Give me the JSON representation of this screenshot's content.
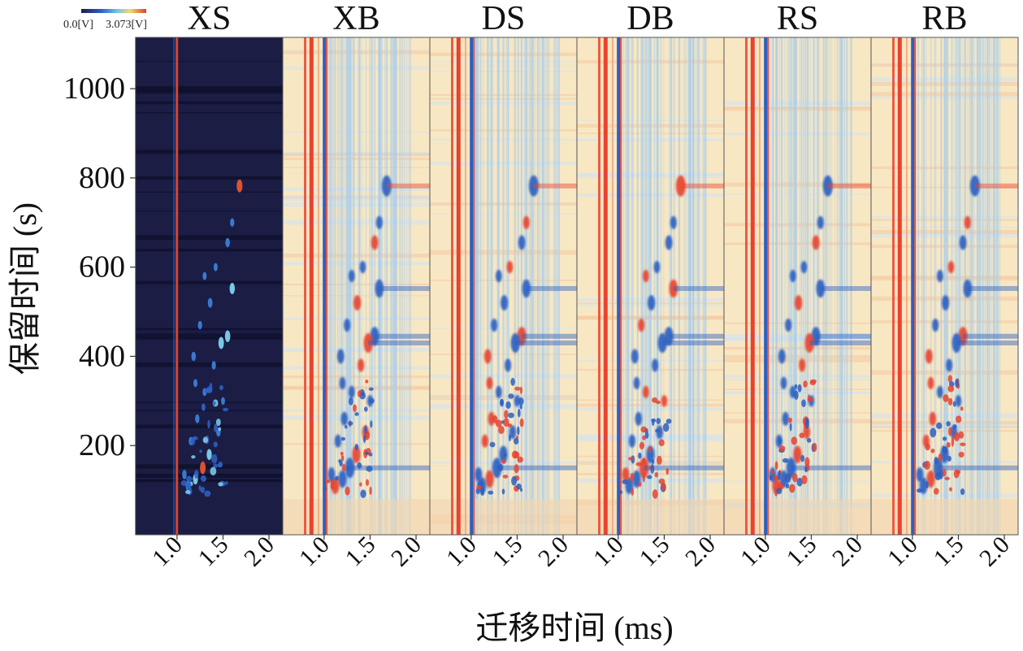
{
  "chart_data": {
    "type": "heatmap",
    "title": "",
    "ylabel": "保留时间 (s)",
    "xlabel": "迁移时间 (ms)",
    "y_ticks": [
      {
        "value": 200,
        "label": "200"
      },
      {
        "value": 400,
        "label": "400"
      },
      {
        "value": 600,
        "label": "600"
      },
      {
        "value": 800,
        "label": "800"
      },
      {
        "value": 1000,
        "label": "1000"
      }
    ],
    "x_ticks": [
      {
        "value": 1.0,
        "label": "1.0"
      },
      {
        "value": 1.5,
        "label": "1.5"
      },
      {
        "value": 2.0,
        "label": "2.0"
      }
    ],
    "ylim": [
      0,
      1115
    ],
    "xlim": [
      0.55,
      2.15
    ],
    "colorbar": {
      "min_label": "0.0[V]",
      "max_label": "3.073[V]"
    },
    "panels": [
      {
        "name": "XS",
        "style": "raw"
      },
      {
        "name": "XB",
        "style": "diff"
      },
      {
        "name": "DS",
        "style": "diff"
      },
      {
        "name": "DB",
        "style": "diff"
      },
      {
        "name": "RS",
        "style": "diff"
      },
      {
        "name": "RB",
        "style": "diff"
      }
    ],
    "colors": {
      "raw_background": "#1b1d45",
      "diff_background": "#f8e7c3",
      "positive": "#e8432f",
      "negative": "#2b5fc2",
      "light_blue": "#a9cdeb",
      "reactant_ion_peak_raw": "#d8432a"
    },
    "peaks": [
      {
        "t": 1.68,
        "rt": 782,
        "i": 1.0
      },
      {
        "t": 1.6,
        "rt": 700,
        "i": 0.45
      },
      {
        "t": 1.55,
        "rt": 655,
        "i": 0.55
      },
      {
        "t": 1.6,
        "rt": 552,
        "i": 0.8
      },
      {
        "t": 1.42,
        "rt": 600,
        "i": 0.4
      },
      {
        "t": 1.36,
        "rt": 520,
        "i": 0.6
      },
      {
        "t": 1.3,
        "rt": 580,
        "i": 0.4
      },
      {
        "t": 1.55,
        "rt": 445,
        "i": 0.85
      },
      {
        "t": 1.48,
        "rt": 430,
        "i": 0.9
      },
      {
        "t": 1.25,
        "rt": 470,
        "i": 0.45
      },
      {
        "t": 1.18,
        "rt": 400,
        "i": 0.55
      },
      {
        "t": 1.4,
        "rt": 380,
        "i": 0.45
      },
      {
        "t": 1.3,
        "rt": 320,
        "i": 0.4
      },
      {
        "t": 1.22,
        "rt": 260,
        "i": 0.5
      },
      {
        "t": 1.35,
        "rt": 180,
        "i": 0.75
      },
      {
        "t": 1.28,
        "rt": 150,
        "i": 0.95
      },
      {
        "t": 1.2,
        "rt": 125,
        "i": 0.75
      },
      {
        "t": 1.12,
        "rt": 110,
        "i": 0.7
      },
      {
        "t": 1.08,
        "rt": 135,
        "i": 0.55
      },
      {
        "t": 1.15,
        "rt": 210,
        "i": 0.45
      },
      {
        "t": 1.45,
        "rt": 230,
        "i": 0.5
      },
      {
        "t": 1.5,
        "rt": 300,
        "i": 0.35
      },
      {
        "t": 1.2,
        "rt": 340,
        "i": 0.4
      }
    ]
  }
}
